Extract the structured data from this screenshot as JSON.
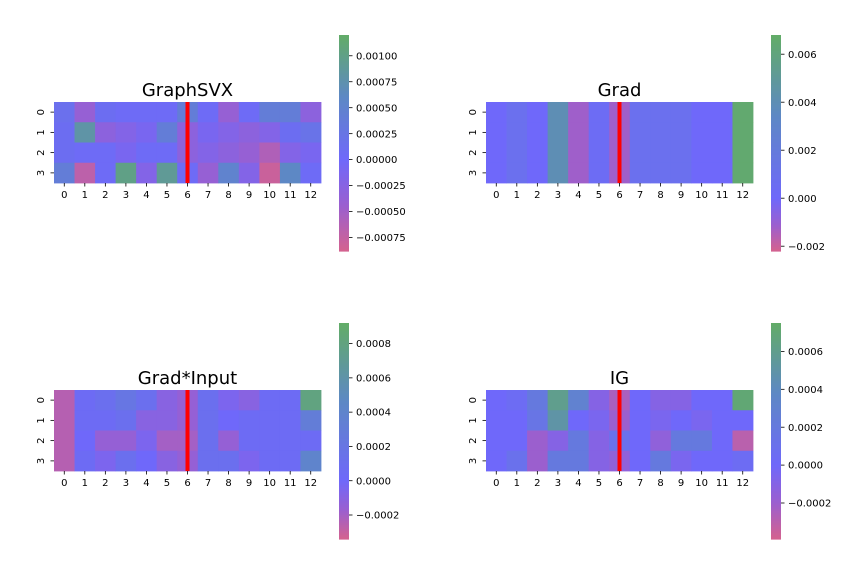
{
  "chart_data": [
    {
      "type": "heatmap",
      "title": "GraphSVX",
      "x_ticks": [
        "0",
        "1",
        "2",
        "3",
        "4",
        "5",
        "6",
        "7",
        "8",
        "9",
        "10",
        "11",
        "12"
      ],
      "y_ticks": [
        "0",
        "1",
        "2",
        "3"
      ],
      "values": [
        [
          0.00015,
          -0.0004,
          0.0001,
          5e-05,
          5e-05,
          5e-05,
          0.0004,
          5e-05,
          -0.0004,
          5e-05,
          0.0004,
          0.0004,
          -0.0003
        ],
        [
          0.0001,
          0.0008,
          -0.0003,
          -0.0002,
          -0.0001,
          0.0004,
          -0.0003,
          -0.0001,
          -0.0002,
          -0.0003,
          -0.0002,
          0.0001,
          0.0002
        ],
        [
          0.0001,
          5e-05,
          5e-05,
          -0.0001,
          5e-05,
          5e-05,
          -0.0003,
          -0.0002,
          -0.0003,
          -0.0004,
          -0.0006,
          -0.0002,
          -0.0001
        ],
        [
          0.0004,
          -0.0007,
          5e-05,
          0.001,
          -0.0002,
          0.0009,
          5e-05,
          -0.0004,
          0.0005,
          -0.0002,
          -0.0008,
          0.0006,
          5e-05
        ]
      ],
      "colorbar": {
        "vmin": -0.00088,
        "vmax": 0.0012,
        "ticks": [
          -0.00075,
          -0.0005,
          -0.00025,
          0.0,
          0.00025,
          0.0005,
          0.00075,
          0.001
        ],
        "tick_labels": [
          "−0.00075",
          "−0.00050",
          "−0.00025",
          "0.00000",
          "0.00025",
          "0.00050",
          "0.00075",
          "0.00100"
        ]
      },
      "separator_after_column": 6
    },
    {
      "type": "heatmap",
      "title": "Grad",
      "x_ticks": [
        "0",
        "1",
        "2",
        "3",
        "4",
        "5",
        "6",
        "7",
        "8",
        "9",
        "10",
        "11",
        "12"
      ],
      "y_ticks": [
        "0",
        "1",
        "2",
        "3"
      ],
      "values": [
        [
          0.0,
          0.0008,
          0.0,
          0.004,
          -0.0012,
          0.0004,
          -0.0012,
          0.0008,
          0.0008,
          0.0008,
          0.0,
          0.0,
          0.0065
        ],
        [
          0.0,
          0.0008,
          0.0,
          0.004,
          -0.0012,
          0.0004,
          -0.0012,
          0.0008,
          0.0008,
          0.0008,
          0.0,
          0.0,
          0.0065
        ],
        [
          0.0,
          0.0008,
          0.0,
          0.004,
          -0.0012,
          0.0004,
          -0.0012,
          0.0008,
          0.0008,
          0.0008,
          0.0,
          0.0,
          0.0065
        ],
        [
          0.0,
          0.0008,
          0.0,
          0.004,
          -0.0012,
          0.0004,
          -0.0012,
          0.0008,
          0.0008,
          0.0008,
          0.0,
          0.0,
          0.0065
        ]
      ],
      "colorbar": {
        "vmin": -0.0022,
        "vmax": 0.0068,
        "ticks": [
          -0.002,
          0.0,
          0.002,
          0.004,
          0.006
        ],
        "tick_labels": [
          "−0.002",
          "0.000",
          "0.002",
          "0.004",
          "0.006"
        ]
      },
      "separator_after_column": 6
    },
    {
      "type": "heatmap",
      "title": "Grad*Input",
      "x_ticks": [
        "0",
        "1",
        "2",
        "3",
        "4",
        "5",
        "6",
        "7",
        "8",
        "9",
        "10",
        "11",
        "12"
      ],
      "y_ticks": [
        "0",
        "1",
        "2",
        "3"
      ],
      "values": [
        [
          -0.00025,
          5e-05,
          0.0001,
          0.0002,
          0.0001,
          -0.0001,
          -0.00015,
          0.0001,
          -5e-05,
          -0.0001,
          5e-05,
          5e-05,
          0.0008
        ],
        [
          -0.00025,
          5e-05,
          5e-05,
          0.0001,
          -0.0001,
          -0.0001,
          -0.00015,
          0.0001,
          0.0,
          5e-05,
          5e-05,
          5e-05,
          0.0003
        ],
        [
          -0.00025,
          0.0,
          -0.00015,
          -0.00015,
          -5e-05,
          -0.0002,
          -0.0002,
          0.0001,
          -0.00015,
          5e-05,
          5e-05,
          5e-05,
          5e-05
        ],
        [
          -0.00025,
          5e-05,
          -5e-05,
          0.0001,
          0.0,
          -0.0001,
          -0.00015,
          0.0001,
          0.0001,
          -5e-05,
          5e-05,
          5e-05,
          0.0004
        ]
      ],
      "colorbar": {
        "vmin": -0.00034,
        "vmax": 0.00092,
        "ticks": [
          -0.0002,
          0.0,
          0.0002,
          0.0004,
          0.0006,
          0.0008
        ],
        "tick_labels": [
          "−0.0002",
          "0.0000",
          "0.0002",
          "0.0004",
          "0.0006",
          "0.0008"
        ]
      },
      "separator_after_column": 6
    },
    {
      "type": "heatmap",
      "title": "IG",
      "x_ticks": [
        "0",
        "1",
        "2",
        "3",
        "4",
        "5",
        "6",
        "7",
        "8",
        "9",
        "10",
        "11",
        "12"
      ],
      "y_ticks": [
        "0",
        "1",
        "2",
        "3"
      ],
      "values": [
        [
          0.0,
          5e-05,
          0.0002,
          0.0006,
          0.0003,
          -0.0001,
          -0.00025,
          0.0,
          -0.0001,
          -0.0001,
          0.0,
          0.0,
          0.0007
        ],
        [
          0.0,
          0.0,
          0.00015,
          0.0005,
          0.0,
          -5e-05,
          -0.0002,
          0.0,
          -5e-05,
          0.0,
          -5e-05,
          0.0,
          0.0
        ],
        [
          0.0,
          0.0,
          -0.0002,
          -0.0001,
          0.0002,
          -0.0001,
          0.0001,
          0.0,
          -0.00015,
          0.0002,
          0.0002,
          0.0,
          -0.0003
        ],
        [
          0.0,
          0.0001,
          -0.0002,
          0.0002,
          0.0002,
          -0.0001,
          -0.00015,
          0.0,
          0.0002,
          -5e-05,
          0.0,
          0.0,
          5e-05
        ]
      ],
      "colorbar": {
        "vmin": -0.00039,
        "vmax": 0.00075,
        "ticks": [
          -0.0002,
          0.0,
          0.0002,
          0.0004,
          0.0006
        ],
        "tick_labels": [
          "−0.0002",
          "0.0000",
          "0.0002",
          "0.0004",
          "0.0006"
        ]
      },
      "separator_after_column": 6
    }
  ],
  "colors": {
    "negative": "#d4628f",
    "mid_negative": "#9a5fd0",
    "zero": "#6f68fa",
    "mid_positive": "#5d88c5",
    "positive": "#62ac67",
    "separator": "#ff0000"
  }
}
